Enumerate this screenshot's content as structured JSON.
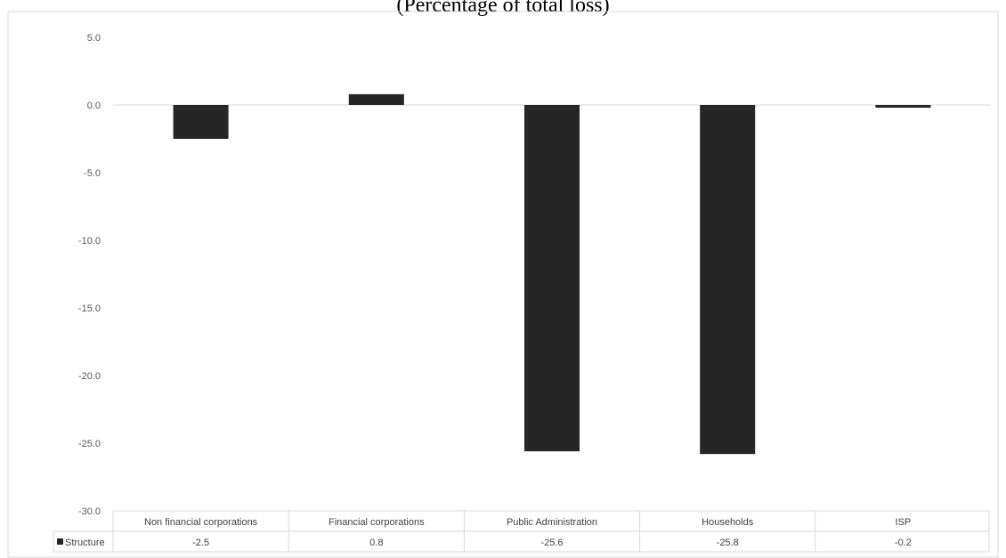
{
  "chart_data": {
    "type": "bar",
    "title": "(Percentage of total loss)",
    "categories": [
      "Non financial corporations",
      "Financial corporations",
      "Public Administration",
      "Households",
      "ISP"
    ],
    "series": [
      {
        "name": "Structure",
        "values": [
          -2.5,
          0.8,
          -25.6,
          -25.8,
          -0.2
        ]
      }
    ],
    "value_labels": [
      "-2.5",
      "0.8",
      "-25.6",
      "-25.8",
      "-0.2"
    ],
    "y_ticks": [
      5.0,
      0.0,
      -5.0,
      -10.0,
      -15.0,
      -20.0,
      -25.0,
      -30.0
    ],
    "y_tick_labels": [
      "5.0",
      "0.0",
      "-5.0",
      "-10.0",
      "-15.0",
      "-20.0",
      "-25.0",
      "-30.0"
    ],
    "ylim": [
      -30,
      5
    ],
    "grid": false,
    "legend": "data table",
    "bar_color": "#262626",
    "axis_color": "#d9d9d9"
  }
}
